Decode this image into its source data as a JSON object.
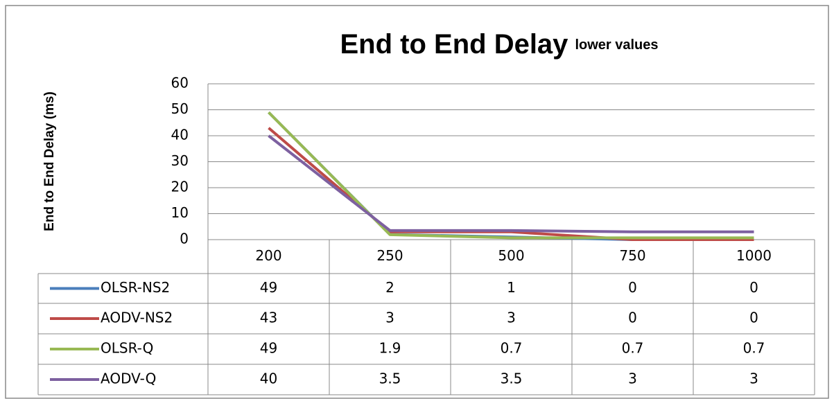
{
  "chart_data": {
    "type": "line",
    "title": "End to End Delay",
    "subtitle": "lower values",
    "y_label": "End to End Delay (ms)",
    "categories": [
      "200",
      "250",
      "500",
      "750",
      "1000"
    ],
    "series": [
      {
        "name": "OLSR-NS2",
        "color": "#4a7ebb",
        "values": [
          49,
          2,
          1,
          0,
          0
        ]
      },
      {
        "name": "AODV-NS2",
        "color": "#be4b48",
        "values": [
          43,
          3,
          3,
          0,
          0
        ]
      },
      {
        "name": "OLSR-Q",
        "color": "#98b954",
        "values": [
          49,
          1.9,
          0.7,
          0.7,
          0.7
        ]
      },
      {
        "name": "AODV-Q",
        "color": "#7d60a0",
        "values": [
          40,
          3.5,
          3.5,
          3,
          3
        ]
      }
    ],
    "ylim": [
      0,
      60
    ],
    "yticks": [
      0,
      10,
      20,
      30,
      40,
      50,
      60
    ],
    "grid": true,
    "data_table": true
  }
}
